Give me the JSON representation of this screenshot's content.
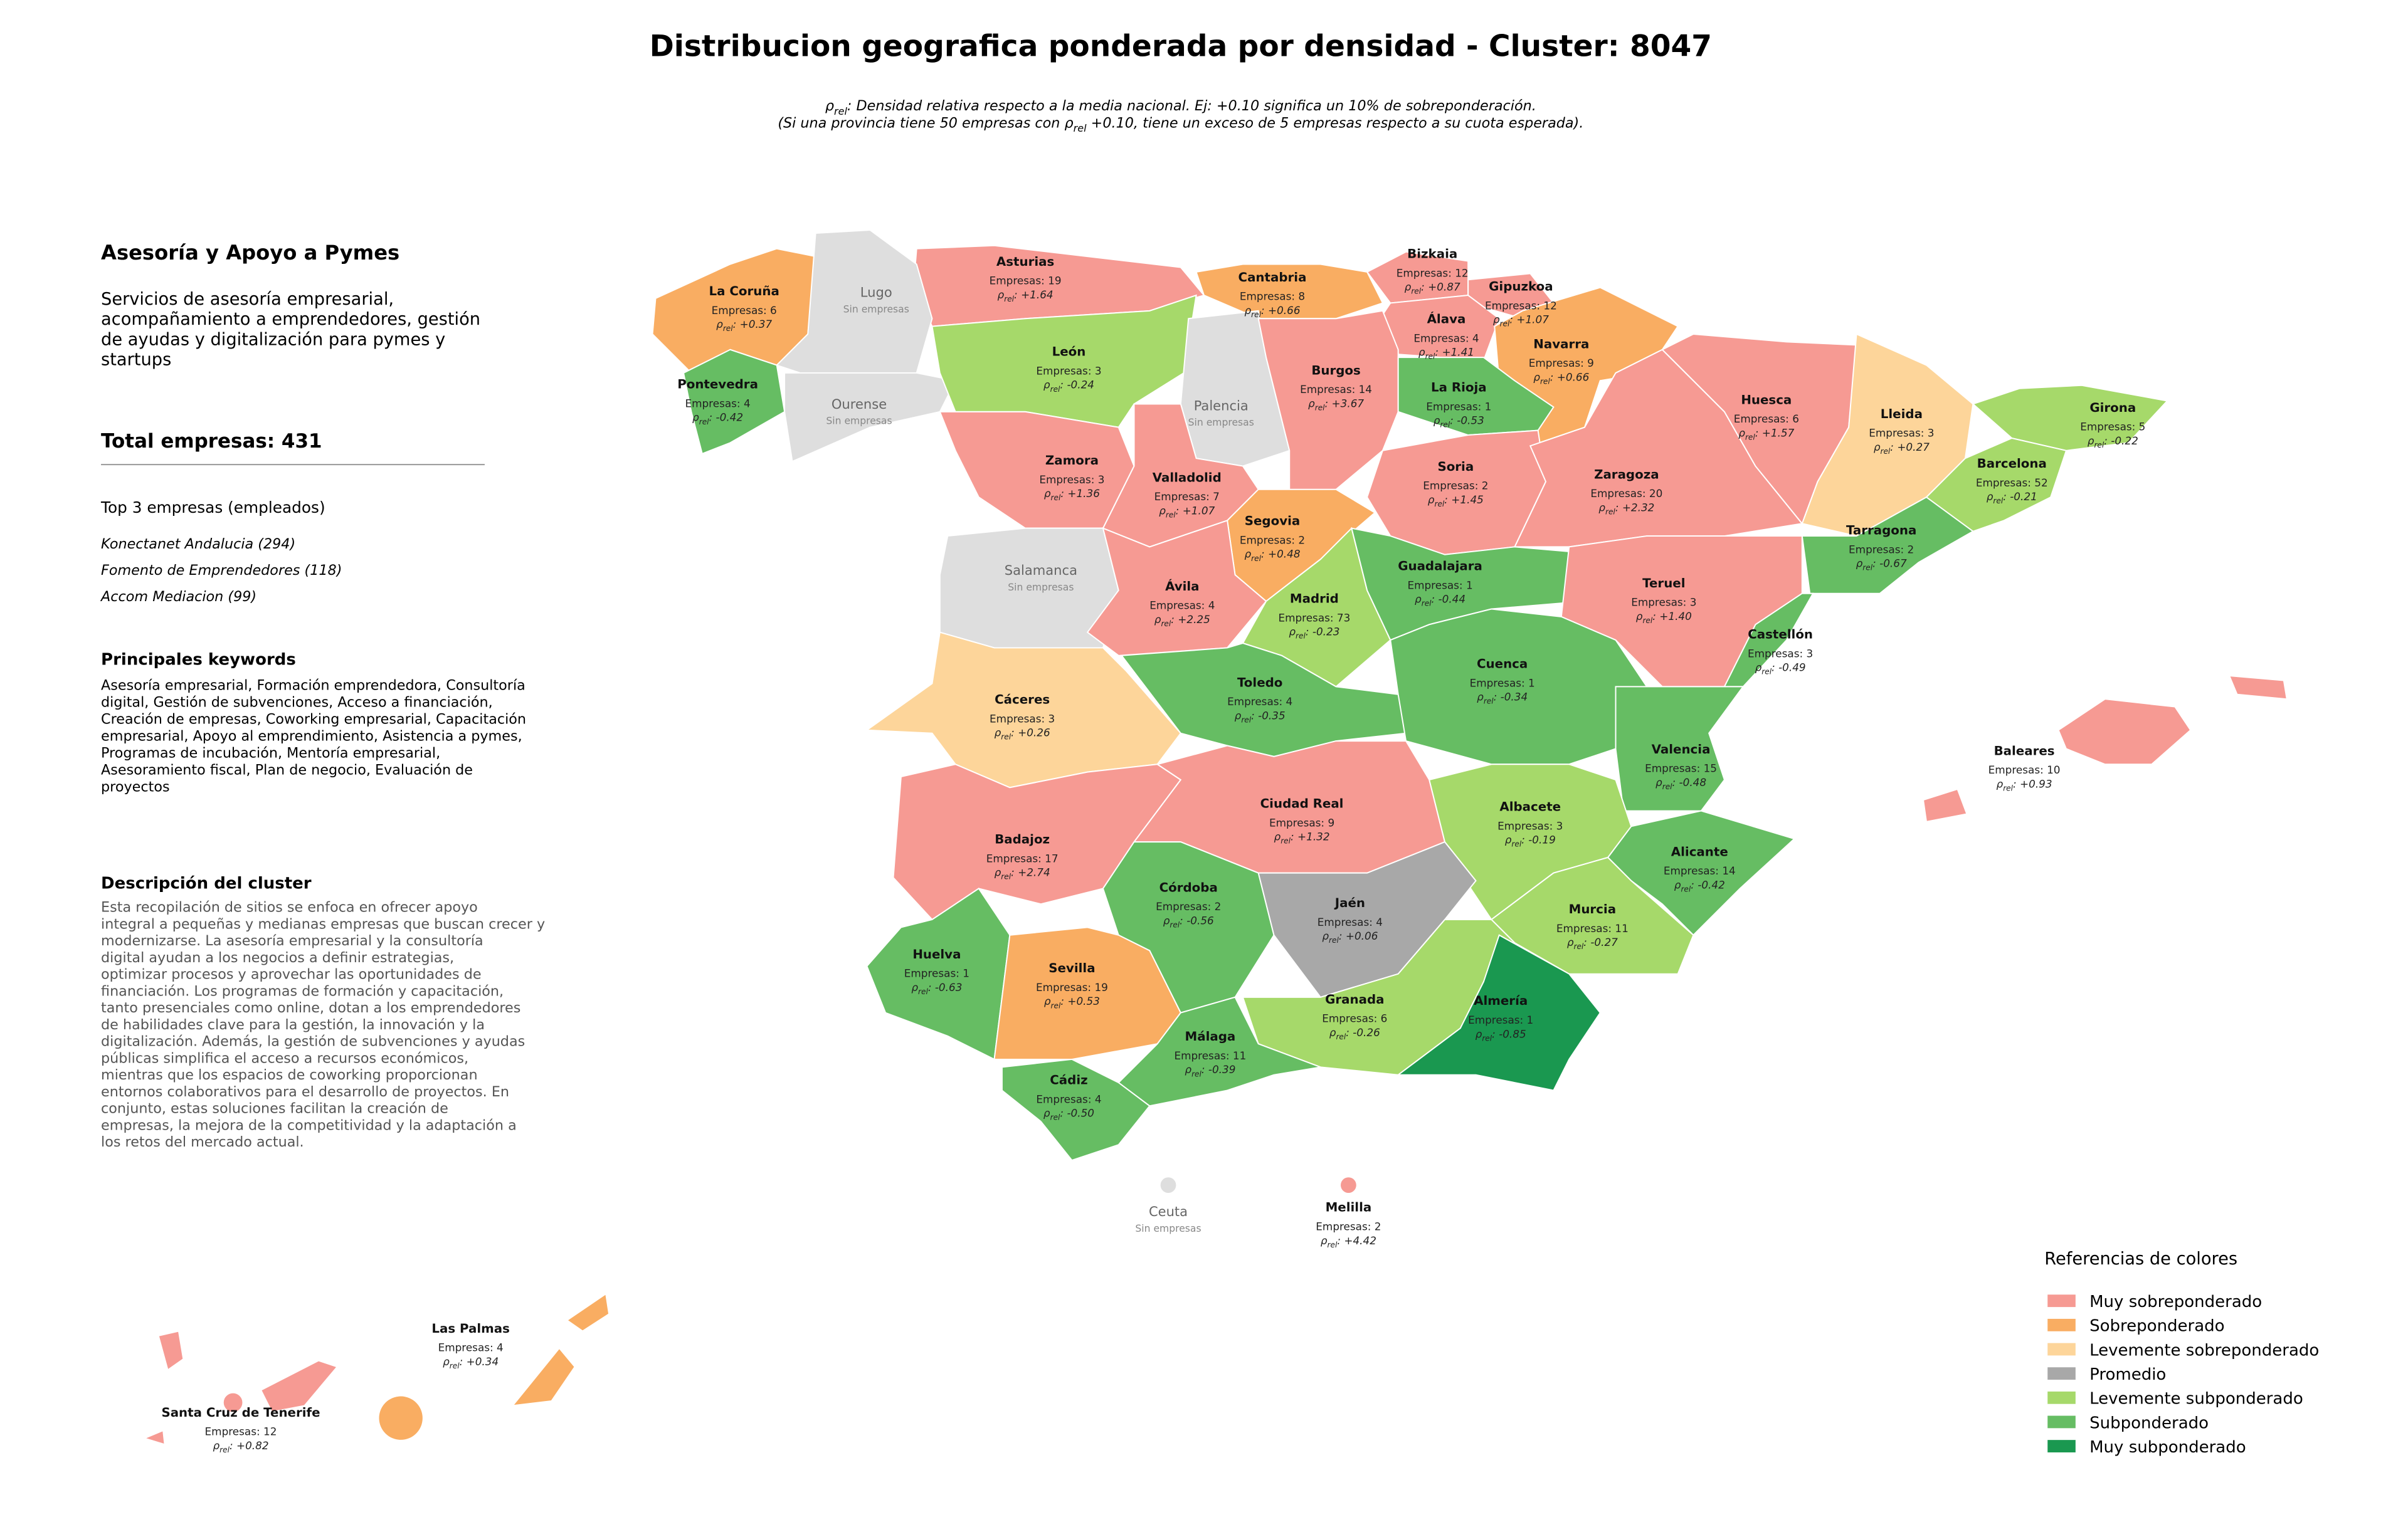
{
  "title": "Distribucion geografica ponderada por densidad - Cluster: 8047",
  "subtitle": [
    [
      {
        "text": "ρ"
      },
      {
        "text": "rel",
        "sub": true
      },
      {
        "text": ": Densidad relativa respecto a la media nacional. Ej: +0.10 significa un 10% de sobreponderación."
      }
    ],
    [
      {
        "text": "(Si una provincia tiene 50 empresas con ρ"
      },
      {
        "text": "rel",
        "sub": true
      },
      {
        "text": " +0.10, tiene un exceso de 5 empresas respecto a su cuota esperada)."
      }
    ]
  ],
  "panel": {
    "title": "Asesoría y Apoyo a Pymes",
    "description": [
      "Servicios de asesoría empresarial,",
      "acompañamiento a emprendedores, gestión",
      "de ayudas y digitalización para pymes y",
      "startups"
    ],
    "total": "Total empresas: 431",
    "top_heading": "Top 3 empresas (empleados)",
    "top": [
      "Konectanet Andalucia (294)",
      "Fomento de Emprendedores (118)",
      "Accom Mediacion (99)"
    ],
    "keywords_heading": "Principales keywords",
    "keywords": [
      "Asesoría empresarial, Formación emprendedora, Consultoría",
      "digital, Gestión de subvenciones, Acceso a financiación,",
      "Creación de empresas, Coworking empresarial, Capacitación",
      "empresarial, Apoyo al emprendimiento, Asistencia a pymes,",
      "Programas de incubación, Mentoría empresarial,",
      "Asesoramiento fiscal, Plan de negocio, Evaluación de",
      "proyectos"
    ],
    "cluster_heading": "Descripción del cluster",
    "cluster_text": [
      "Esta recopilación de sitios se enfoca en ofrecer apoyo",
      "integral a pequeñas y medianas empresas que buscan crecer y",
      "modernizarse. La asesoría empresarial y la consultoría",
      "digital ayudan a los negocios a definir estrategias,",
      "optimizar procesos y aprovechar las oportunidades de",
      "financiación. Los programas de formación y capacitación,",
      "tanto presenciales como online, dotan a los emprendedores",
      "de habilidades clave para la gestión, la innovación y la",
      "digitalización. Además, la gestión de subvenciones y ayudas",
      "públicas simplifica el acceso a recursos económicos,",
      "mientras que los espacios de coworking proporcionan",
      "entornos colaborativos para el desarrollo de proyectos. En",
      "conjunto, estas soluciones facilitan la creación de",
      "empresas, la mejora de la competitividad y la adaptación a",
      "los retos del mercado actual."
    ]
  },
  "rho_prefix": [
    {
      "text": "ρ"
    },
    {
      "text": "rel",
      "sub": true
    },
    {
      "text": ": "
    }
  ],
  "legend": {
    "title": "Referencias de colores",
    "items": [
      {
        "label": "Muy sobreponderado",
        "color": "#f69a93"
      },
      {
        "label": "Sobreponderado",
        "color": "#f9ad62"
      },
      {
        "label": "Levemente sobreponderado",
        "color": "#fdd59a"
      },
      {
        "label": "Promedio",
        "color": "#a8a8a8"
      },
      {
        "label": "Levemente subponderado",
        "color": "#a6d96a"
      },
      {
        "label": "Subponderado",
        "color": "#66bd63"
      },
      {
        "label": "Muy subponderado",
        "color": "#1a9850"
      }
    ]
  },
  "provinces": [
    {
      "name": "Asturias",
      "empresas": "Empresas: 19",
      "rho": "+1.64",
      "color": "#f69a93"
    },
    {
      "name": "Cantabria",
      "empresas": "Empresas: 8",
      "rho": "+0.66",
      "color": "#f9ad62"
    },
    {
      "name": "Bizkaia",
      "empresas": "Empresas: 12",
      "rho": "+0.87",
      "color": "#f69a93"
    },
    {
      "name": "Gipuzkoa",
      "empresas": "Empresas: 12",
      "rho": "+1.07",
      "color": "#f69a93"
    },
    {
      "name": "Álava",
      "empresas": "Empresas: 4",
      "rho": "+1.41",
      "color": "#f69a93"
    },
    {
      "name": "Navarra",
      "empresas": "Empresas: 9",
      "rho": "+0.66",
      "color": "#f9ad62"
    },
    {
      "name": "La Coruña",
      "empresas": "Empresas: 6",
      "rho": "+0.37",
      "color": "#f9ad62"
    },
    {
      "name": "Lugo",
      "note": "Sin empresas",
      "color": "#dedede"
    },
    {
      "name": "Pontevedra",
      "empresas": "Empresas: 4",
      "rho": "-0.42",
      "color": "#66bd63"
    },
    {
      "name": "Ourense",
      "note": "Sin empresas",
      "color": "#dedede"
    },
    {
      "name": "León",
      "empresas": "Empresas: 3",
      "rho": "-0.24",
      "color": "#a6d96a"
    },
    {
      "name": "Palencia",
      "note": "Sin empresas",
      "color": "#dedede"
    },
    {
      "name": "Burgos",
      "empresas": "Empresas: 14",
      "rho": "+3.67",
      "color": "#f69a93"
    },
    {
      "name": "La Rioja",
      "empresas": "Empresas: 1",
      "rho": "-0.53",
      "color": "#66bd63"
    },
    {
      "name": "Zamora",
      "empresas": "Empresas: 3",
      "rho": "+1.36",
      "color": "#f69a93"
    },
    {
      "name": "Valladolid",
      "empresas": "Empresas: 7",
      "rho": "+1.07",
      "color": "#f69a93"
    },
    {
      "name": "Soria",
      "empresas": "Empresas: 2",
      "rho": "+1.45",
      "color": "#f69a93"
    },
    {
      "name": "Zaragoza",
      "empresas": "Empresas: 20",
      "rho": "+2.32",
      "color": "#f69a93"
    },
    {
      "name": "Huesca",
      "empresas": "Empresas: 6",
      "rho": "+1.57",
      "color": "#f69a93"
    },
    {
      "name": "Lleida",
      "empresas": "Empresas: 3",
      "rho": "+0.27",
      "color": "#fdd59a"
    },
    {
      "name": "Girona",
      "empresas": "Empresas: 5",
      "rho": "-0.22",
      "color": "#a6d96a"
    },
    {
      "name": "Barcelona",
      "empresas": "Empresas: 52",
      "rho": "-0.21",
      "color": "#a6d96a"
    },
    {
      "name": "Tarragona",
      "empresas": "Empresas: 2",
      "rho": "-0.67",
      "color": "#66bd63"
    },
    {
      "name": "Segovia",
      "empresas": "Empresas: 2",
      "rho": "+0.48",
      "color": "#f9ad62"
    },
    {
      "name": "Salamanca",
      "note": "Sin empresas",
      "color": "#dedede"
    },
    {
      "name": "Ávila",
      "empresas": "Empresas: 4",
      "rho": "+2.25",
      "color": "#f69a93"
    },
    {
      "name": "Madrid",
      "empresas": "Empresas: 73",
      "rho": "-0.23",
      "color": "#a6d96a"
    },
    {
      "name": "Guadalajara",
      "empresas": "Empresas: 1",
      "rho": "-0.44",
      "color": "#66bd63"
    },
    {
      "name": "Teruel",
      "empresas": "Empresas: 3",
      "rho": "+1.40",
      "color": "#f69a93"
    },
    {
      "name": "Castellón",
      "empresas": "Empresas: 3",
      "rho": "-0.49",
      "color": "#66bd63"
    },
    {
      "name": "Cáceres",
      "empresas": "Empresas: 3",
      "rho": "+0.26",
      "color": "#fdd59a"
    },
    {
      "name": "Toledo",
      "empresas": "Empresas: 4",
      "rho": "-0.35",
      "color": "#66bd63"
    },
    {
      "name": "Cuenca",
      "empresas": "Empresas: 1",
      "rho": "-0.34",
      "color": "#66bd63"
    },
    {
      "name": "Valencia",
      "empresas": "Empresas: 15",
      "rho": "-0.48",
      "color": "#66bd63"
    },
    {
      "name": "Badajoz",
      "empresas": "Empresas: 17",
      "rho": "+2.74",
      "color": "#f69a93"
    },
    {
      "name": "Ciudad Real",
      "empresas": "Empresas: 9",
      "rho": "+1.32",
      "color": "#f69a93"
    },
    {
      "name": "Albacete",
      "empresas": "Empresas: 3",
      "rho": "-0.19",
      "color": "#a6d96a"
    },
    {
      "name": "Alicante",
      "empresas": "Empresas: 14",
      "rho": "-0.42",
      "color": "#66bd63"
    },
    {
      "name": "Murcia",
      "empresas": "Empresas: 11",
      "rho": "-0.27",
      "color": "#a6d96a"
    },
    {
      "name": "Córdoba",
      "empresas": "Empresas: 2",
      "rho": "-0.56",
      "color": "#66bd63"
    },
    {
      "name": "Jaén",
      "empresas": "Empresas: 4",
      "rho": "+0.06",
      "color": "#a8a8a8"
    },
    {
      "name": "Huelva",
      "empresas": "Empresas: 1",
      "rho": "-0.63",
      "color": "#66bd63"
    },
    {
      "name": "Sevilla",
      "empresas": "Empresas: 19",
      "rho": "+0.53",
      "color": "#f9ad62"
    },
    {
      "name": "Granada",
      "empresas": "Empresas: 6",
      "rho": "-0.26",
      "color": "#a6d96a"
    },
    {
      "name": "Almería",
      "empresas": "Empresas: 1",
      "rho": "-0.85",
      "color": "#1a9850"
    },
    {
      "name": "Málaga",
      "empresas": "Empresas: 11",
      "rho": "-0.39",
      "color": "#66bd63"
    },
    {
      "name": "Cádiz",
      "empresas": "Empresas: 4",
      "rho": "-0.50",
      "color": "#66bd63"
    },
    {
      "name": "Baleares",
      "empresas": "Empresas: 10",
      "rho": "+0.93",
      "color": "#f69a93"
    },
    {
      "name": "Las Palmas",
      "empresas": "Empresas: 4",
      "rho": "+0.34",
      "color": "#f9ad62"
    },
    {
      "name": "Santa Cruz de Tenerife",
      "empresas": "Empresas: 12",
      "rho": "+0.82",
      "color": "#f69a93"
    },
    {
      "name": "Ceuta",
      "note": "Sin empresas",
      "color": "#dedede"
    },
    {
      "name": "Melilla",
      "empresas": "Empresas: 2",
      "rho": "+4.42",
      "color": "#f69a93"
    }
  ]
}
